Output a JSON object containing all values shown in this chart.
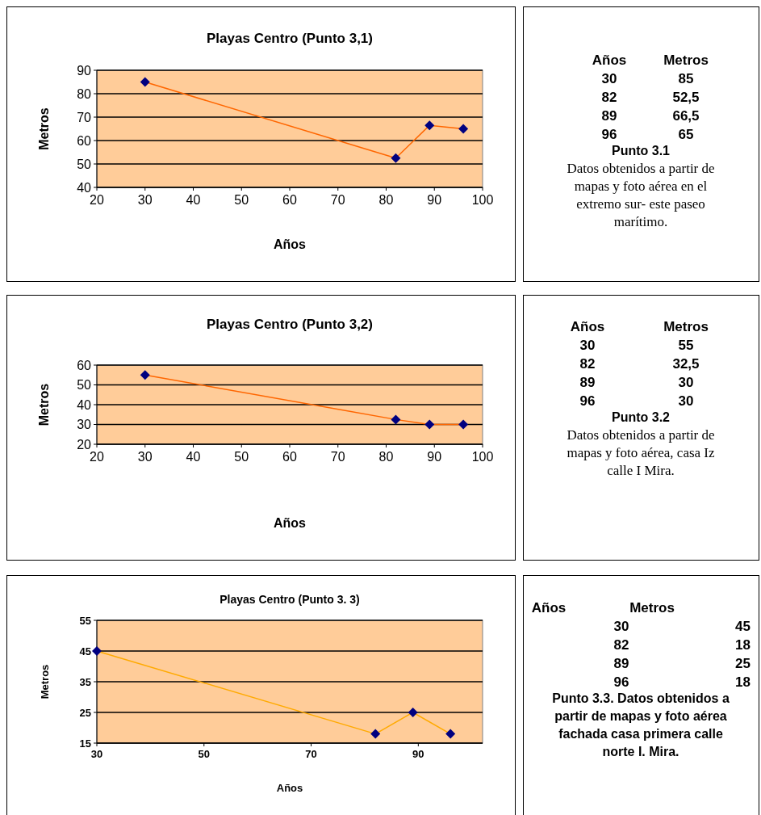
{
  "chart_data": [
    {
      "type": "line",
      "title": "Playas Centro (Punto 3,1)",
      "xlabel": "Años",
      "ylabel": "Metros",
      "x": [
        30,
        82,
        89,
        96
      ],
      "values": [
        85,
        52.5,
        66.5,
        65
      ],
      "color": "#ff6600",
      "marker": "diamond",
      "xlim": [
        20,
        100
      ],
      "xticks": [
        20,
        30,
        40,
        50,
        60,
        70,
        80,
        90,
        100
      ],
      "ylim": [
        40,
        90
      ],
      "yticks": [
        40,
        50,
        60,
        70,
        80,
        90
      ],
      "grid": "y"
    },
    {
      "type": "other",
      "annotations": [
        "Años",
        "Metros",
        "30",
        "85",
        "82",
        "52,5",
        "89",
        "66,5",
        "96",
        "65",
        "Punto 3.1",
        "Datos obtenidos a partir de mapas y foto aérea en el extremo sur- este paseo marítimo."
      ]
    },
    {
      "type": "line",
      "title": "Playas Centro (Punto 3,2)",
      "xlabel": "Años",
      "ylabel": "Metros",
      "x": [
        30,
        82,
        89,
        96
      ],
      "values": [
        55,
        32.5,
        30,
        30
      ],
      "color": "#ff6600",
      "marker": "diamond",
      "xlim": [
        20,
        100
      ],
      "xticks": [
        20,
        30,
        40,
        50,
        60,
        70,
        80,
        90,
        100
      ],
      "ylim": [
        20,
        60
      ],
      "yticks": [
        20,
        30,
        40,
        50,
        60
      ],
      "grid": "y"
    },
    {
      "type": "other",
      "annotations": [
        "Años",
        "Metros",
        "30",
        "55",
        "82",
        "32,5",
        "89",
        "30",
        "96",
        "30",
        "Punto 3.2",
        "Datos obtenidos  a partir de mapas y foto aérea, casa Iz calle I Mira."
      ]
    },
    {
      "type": "line",
      "title": "Playas Centro (Punto 3. 3)",
      "xlabel": "Años",
      "ylabel": "Metros",
      "x": [
        30,
        82,
        89,
        96
      ],
      "values": [
        45,
        18,
        25,
        18
      ],
      "color": "#ffaa00",
      "marker": "diamond",
      "xlim": [
        30,
        102
      ],
      "xticks": [
        30,
        50,
        70,
        90
      ],
      "ylim": [
        15,
        55
      ],
      "yticks": [
        15,
        25,
        35,
        45,
        55
      ],
      "grid": "y"
    },
    {
      "type": "other",
      "annotations": [
        "Años",
        "Metros",
        "30",
        "45",
        "82",
        "18",
        "89",
        "25",
        "96",
        "18",
        "Punto 3.3. Datos obtenidos a partir de mapas y foto aérea fachada casa primera calle norte  I. Mira."
      ]
    }
  ]
}
